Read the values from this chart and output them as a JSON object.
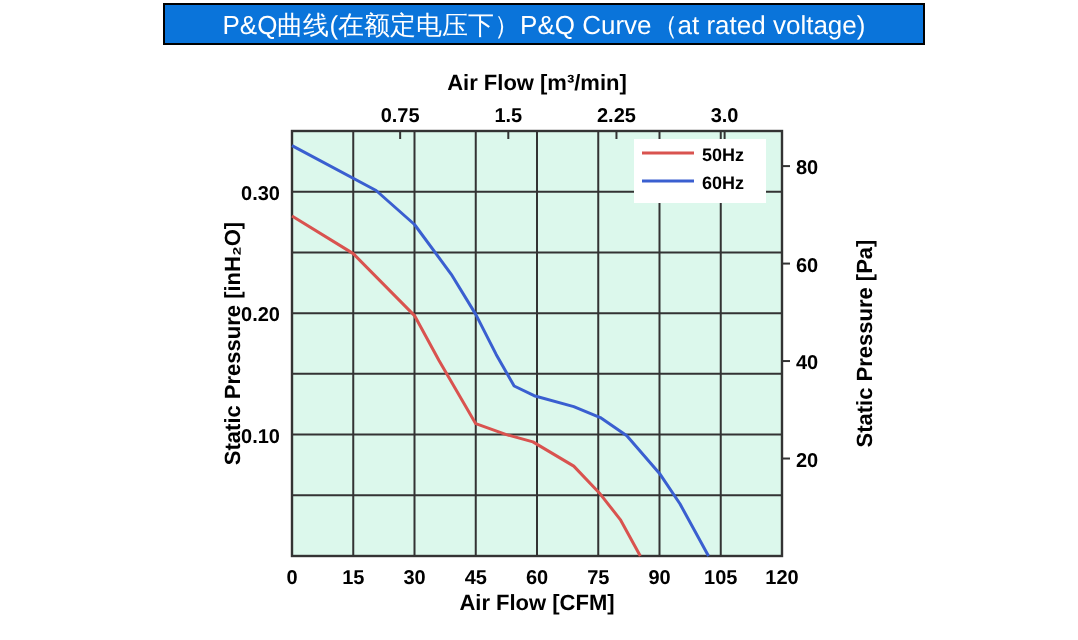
{
  "chart_data": {
    "type": "line",
    "title": "P&Q曲线(在额定电压下）P&Q Curve（at rated voltage)",
    "xlabel": "Air Flow  [CFM]",
    "x2label": "Air Flow  [m³/min]",
    "ylabel": "Static Pressure [inH₂O]",
    "y2label": "Static Pressure [Pa]",
    "xlim": [
      0,
      120
    ],
    "xticks": [
      0,
      15,
      30,
      45,
      60,
      75,
      90,
      105,
      120
    ],
    "x2lim": [
      0,
      3.398
    ],
    "x2ticks": [
      0.75,
      1.5,
      2.25,
      {
        "value": 3,
        "label": "3.0"
      }
    ],
    "ylim": [
      0,
      0.35
    ],
    "yticks": [
      {
        "value": 0.05,
        "label": null
      },
      {
        "value": 0.1,
        "label": "0.10"
      },
      {
        "value": 0.15,
        "label": null
      },
      {
        "value": 0.2,
        "label": "0.20"
      },
      {
        "value": 0.25,
        "label": null
      },
      {
        "value": 0.3,
        "label": "0.30"
      }
    ],
    "y2lim": [
      0,
      87.2
    ],
    "y2ticks": [
      20,
      40,
      60,
      80
    ],
    "grid": true,
    "legend": "top right",
    "line_style": "solid",
    "marker": "none",
    "series": [
      {
        "name": "50Hz",
        "color": "#d9534f",
        "x": [
          0,
          15,
          30,
          36,
          45,
          52.5,
          59,
          69,
          75.5,
          80.4,
          85.3
        ],
        "values": [
          0.28,
          0.249,
          0.198,
          0.161,
          0.109,
          0.1,
          0.094,
          0.074,
          0.051,
          0.03,
          0
        ]
      },
      {
        "name": "60Hz",
        "color": "#3a5fd0",
        "x": [
          0,
          20.6,
          30,
          39,
          45,
          50,
          54.4,
          59.3,
          69,
          75.5,
          82,
          90,
          95,
          102
        ],
        "values": [
          0.338,
          0.301,
          0.273,
          0.232,
          0.199,
          0.166,
          0.14,
          0.132,
          0.123,
          0.114,
          0.099,
          0.068,
          0.043,
          0
        ]
      }
    ]
  }
}
